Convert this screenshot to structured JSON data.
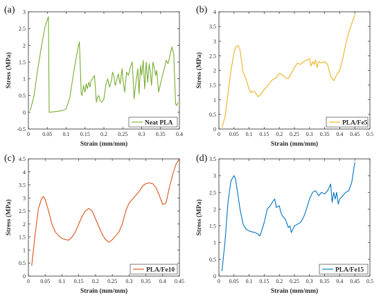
{
  "chart_data": [
    {
      "type": "line",
      "panel_label": "(a)",
      "xlabel": "Strain (mm/mm)",
      "ylabel": "Stress (MPa)",
      "xlim": [
        0,
        0.4
      ],
      "ylim": [
        -0.5,
        3
      ],
      "xticks": [
        "0",
        "0.05",
        "0.1",
        "0.15",
        "0.2",
        "0.25",
        "0.3",
        "0.35",
        "0.4"
      ],
      "yticks": [
        "-0.5",
        "0",
        "0.5",
        "1",
        "1.5",
        "2",
        "2.5",
        "3"
      ],
      "legend_position": "bottom-right",
      "series": [
        {
          "name": "Neat PLA",
          "color": "#77ac30",
          "x": [
            0.005,
            0.015,
            0.025,
            0.035,
            0.045,
            0.053,
            0.055,
            0.07,
            0.09,
            0.1,
            0.11,
            0.12,
            0.13,
            0.135,
            0.14,
            0.142,
            0.146,
            0.15,
            0.153,
            0.156,
            0.16,
            0.163,
            0.166,
            0.17,
            0.175,
            0.18,
            0.183,
            0.186,
            0.19,
            0.195,
            0.2,
            0.205,
            0.21,
            0.215,
            0.22,
            0.223,
            0.226,
            0.23,
            0.234,
            0.238,
            0.243,
            0.248,
            0.25,
            0.255,
            0.26,
            0.265,
            0.27,
            0.275,
            0.28,
            0.285,
            0.29,
            0.293,
            0.297,
            0.3,
            0.304,
            0.308,
            0.312,
            0.316,
            0.32,
            0.323,
            0.326,
            0.33,
            0.334,
            0.337,
            0.34,
            0.345,
            0.35,
            0.355,
            0.36,
            0.365,
            0.37,
            0.375,
            0.38,
            0.385,
            0.39,
            0.393,
            0.396
          ],
          "y": [
            0.05,
            0.5,
            1.3,
            2.0,
            2.6,
            2.85,
            0.0,
            0.02,
            0.05,
            0.1,
            0.45,
            1.2,
            1.85,
            2.1,
            0.55,
            0.5,
            0.8,
            0.6,
            0.85,
            0.7,
            0.9,
            0.75,
            0.95,
            1.0,
            1.1,
            0.3,
            0.45,
            0.5,
            0.35,
            0.3,
            0.4,
            0.8,
            1.0,
            0.75,
            0.95,
            1.2,
            1.1,
            0.8,
            0.95,
            1.15,
            0.85,
            1.3,
            1.0,
            0.6,
            1.2,
            1.1,
            1.35,
            1.5,
            0.4,
            0.9,
            1.3,
            0.55,
            1.4,
            1.1,
            1.55,
            0.7,
            1.5,
            0.9,
            1.45,
            1.2,
            0.8,
            1.5,
            1.3,
            1.1,
            1.25,
            0.6,
            0.85,
            1.1,
            1.3,
            1.55,
            1.45,
            1.7,
            1.95,
            1.75,
            0.25,
            0.2,
            0.3
          ]
        }
      ]
    },
    {
      "type": "line",
      "panel_label": "(b)",
      "xlabel": "Strain (mm/mm)",
      "ylabel": "Stress (MPa)",
      "xlim": [
        0,
        0.5
      ],
      "ylim": [
        0,
        4
      ],
      "xticks": [
        "0",
        "0.05",
        "0.1",
        "0.15",
        "0.2",
        "0.25",
        "0.3",
        "0.35",
        "0.4",
        "0.45",
        "0.5"
      ],
      "yticks": [
        "0",
        "0.5",
        "1",
        "1.5",
        "2",
        "2.5",
        "3",
        "3.5",
        "4"
      ],
      "legend_position": "bottom-right",
      "series": [
        {
          "name": "PLA/Fe5",
          "color": "#edb120",
          "x": [
            0.01,
            0.02,
            0.03,
            0.04,
            0.05,
            0.055,
            0.06,
            0.065,
            0.07,
            0.075,
            0.08,
            0.09,
            0.1,
            0.105,
            0.11,
            0.12,
            0.13,
            0.14,
            0.15,
            0.16,
            0.17,
            0.18,
            0.19,
            0.2,
            0.21,
            0.22,
            0.23,
            0.24,
            0.25,
            0.26,
            0.27,
            0.28,
            0.29,
            0.3,
            0.305,
            0.31,
            0.315,
            0.32,
            0.325,
            0.33,
            0.34,
            0.35,
            0.36,
            0.37,
            0.38,
            0.39,
            0.4,
            0.41,
            0.42,
            0.43,
            0.44,
            0.45
          ],
          "y": [
            0.05,
            0.4,
            1.2,
            2.0,
            2.6,
            2.78,
            2.85,
            2.83,
            2.7,
            2.3,
            1.95,
            1.7,
            1.35,
            1.25,
            1.3,
            1.25,
            1.1,
            1.2,
            1.35,
            1.45,
            1.6,
            1.7,
            1.75,
            1.9,
            1.85,
            1.75,
            1.72,
            1.9,
            2.1,
            2.25,
            2.2,
            2.3,
            2.35,
            2.4,
            2.15,
            2.3,
            2.2,
            2.35,
            2.1,
            2.3,
            2.25,
            2.3,
            2.2,
            1.8,
            1.65,
            1.85,
            2.0,
            2.4,
            2.9,
            3.3,
            3.6,
            3.9
          ]
        }
      ]
    },
    {
      "type": "line",
      "panel_label": "(c)",
      "xlabel": "Strain (mm/mm)",
      "ylabel": "Stress (MPa)",
      "xlim": [
        0,
        0.45
      ],
      "ylim": [
        0,
        4.5
      ],
      "xticks": [
        "0",
        "0.05",
        "0.1",
        "0.15",
        "0.2",
        "0.25",
        "0.3",
        "0.35",
        "0.4",
        "0.45"
      ],
      "yticks": [
        "0",
        "0.5",
        "1",
        "1.5",
        "2",
        "2.5",
        "3",
        "3.5",
        "4",
        "4.5"
      ],
      "legend_position": "bottom-right",
      "series": [
        {
          "name": "PLA/Fe10",
          "color": "#d95319",
          "x": [
            0.01,
            0.02,
            0.03,
            0.04,
            0.045,
            0.05,
            0.06,
            0.07,
            0.08,
            0.09,
            0.1,
            0.11,
            0.12,
            0.13,
            0.14,
            0.15,
            0.16,
            0.17,
            0.18,
            0.19,
            0.2,
            0.21,
            0.22,
            0.23,
            0.24,
            0.25,
            0.26,
            0.27,
            0.28,
            0.29,
            0.3,
            0.31,
            0.32,
            0.33,
            0.34,
            0.35,
            0.36,
            0.37,
            0.38,
            0.39,
            0.4,
            0.41,
            0.42,
            0.43,
            0.44,
            0.45
          ],
          "y": [
            0.4,
            1.6,
            2.6,
            3.0,
            3.05,
            2.95,
            2.5,
            2.0,
            1.7,
            1.55,
            1.45,
            1.4,
            1.38,
            1.5,
            1.7,
            2.0,
            2.3,
            2.5,
            2.6,
            2.5,
            2.2,
            1.9,
            1.6,
            1.4,
            1.3,
            1.4,
            1.55,
            1.7,
            2.0,
            2.5,
            2.8,
            2.95,
            3.1,
            3.25,
            3.45,
            3.55,
            3.58,
            3.55,
            3.4,
            3.1,
            2.75,
            2.8,
            3.4,
            3.9,
            4.3,
            4.5
          ]
        }
      ]
    },
    {
      "type": "line",
      "panel_label": "(d)",
      "xlabel": "Strain (mm/mm)",
      "ylabel": "Stress (MPa)",
      "xlim": [
        0,
        0.5
      ],
      "ylim": [
        0,
        3.5
      ],
      "xticks": [
        "0",
        "0.05",
        "0.1",
        "0.15",
        "0.2",
        "0.25",
        "0.3",
        "0.35",
        "0.4",
        "0.45",
        "0.5"
      ],
      "yticks": [
        "0",
        "0.5",
        "1",
        "1.5",
        "2",
        "2.5",
        "3",
        "3.5"
      ],
      "legend_position": "bottom-right",
      "series": [
        {
          "name": "PLA/Fe15",
          "color": "#0072bd",
          "x": [
            0.01,
            0.02,
            0.03,
            0.04,
            0.05,
            0.055,
            0.06,
            0.07,
            0.08,
            0.09,
            0.1,
            0.11,
            0.12,
            0.13,
            0.135,
            0.14,
            0.15,
            0.16,
            0.17,
            0.18,
            0.185,
            0.19,
            0.2,
            0.205,
            0.21,
            0.22,
            0.23,
            0.235,
            0.24,
            0.25,
            0.26,
            0.27,
            0.28,
            0.29,
            0.3,
            0.31,
            0.32,
            0.33,
            0.34,
            0.35,
            0.36,
            0.37,
            0.375,
            0.38,
            0.385,
            0.39,
            0.395,
            0.4,
            0.41,
            0.42,
            0.43,
            0.44,
            0.45
          ],
          "y": [
            0.15,
            1.0,
            2.2,
            2.85,
            3.0,
            2.9,
            2.6,
            2.0,
            1.55,
            1.4,
            1.35,
            1.32,
            1.3,
            1.25,
            1.2,
            1.3,
            1.6,
            2.0,
            2.1,
            2.25,
            2.3,
            2.05,
            2.1,
            1.9,
            1.8,
            1.7,
            1.45,
            1.5,
            1.3,
            1.5,
            1.55,
            1.6,
            1.75,
            2.0,
            2.3,
            2.5,
            2.55,
            2.4,
            2.5,
            2.45,
            2.55,
            2.75,
            2.2,
            2.5,
            2.3,
            2.5,
            2.15,
            2.3,
            2.4,
            2.5,
            2.55,
            2.8,
            3.4
          ]
        }
      ]
    }
  ]
}
